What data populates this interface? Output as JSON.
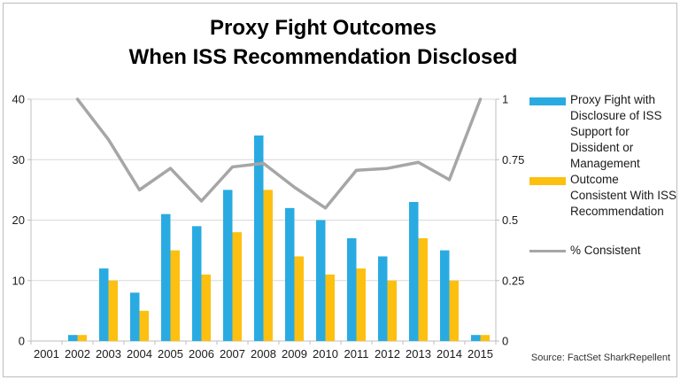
{
  "title": {
    "line1": "Proxy Fight Outcomes",
    "line2": "When ISS Recommendation Disclosed"
  },
  "source": "Source: FactSet SharkRepellent",
  "colors": {
    "bar_blue": "#29ABE2",
    "bar_yellow": "#FDC010",
    "line_gray": "#A6A6A6",
    "gridline": "#D9D9D9",
    "axis_line": "#BFBFBF",
    "text": "#1A1A1A"
  },
  "chart_data": {
    "type": "bar",
    "subtype": "grouped-bars-with-line-overlay",
    "categories": [
      "2001",
      "2002",
      "2003",
      "2004",
      "2005",
      "2006",
      "2007",
      "2008",
      "2009",
      "2010",
      "2011",
      "2012",
      "2013",
      "2014",
      "2015"
    ],
    "series": [
      {
        "name": "Proxy Fight with Disclosure of ISS Support for Dissident or Management",
        "type": "bar",
        "axis": "left",
        "color": "#29ABE2",
        "values": [
          0,
          1,
          12,
          8,
          21,
          19,
          25,
          34,
          22,
          20,
          17,
          14,
          23,
          15,
          1
        ]
      },
      {
        "name": "Outcome Consistent With ISS Recommendation",
        "type": "bar",
        "axis": "left",
        "color": "#FDC010",
        "values": [
          0,
          1,
          10,
          5,
          15,
          11,
          18,
          25,
          14,
          11,
          12,
          10,
          17,
          10,
          1
        ]
      },
      {
        "name": "% Consistent",
        "type": "line",
        "axis": "right",
        "color": "#A6A6A6",
        "values": [
          null,
          1.0,
          0.833,
          0.625,
          0.714,
          0.579,
          0.72,
          0.735,
          0.636,
          0.55,
          0.706,
          0.714,
          0.739,
          0.667,
          1.0
        ]
      }
    ],
    "left_axis": {
      "min": 0,
      "max": 40,
      "ticks": [
        0,
        10,
        20,
        30,
        40
      ],
      "labels": [
        "0",
        "10",
        "20",
        "30",
        "40"
      ]
    },
    "right_axis": {
      "min": 0,
      "max": 1,
      "ticks": [
        0,
        0.25,
        0.5,
        0.75,
        1
      ],
      "labels": [
        "0",
        "0.25",
        "0.5",
        "0.75",
        "1"
      ]
    },
    "grid": true,
    "legend_position": "right"
  }
}
